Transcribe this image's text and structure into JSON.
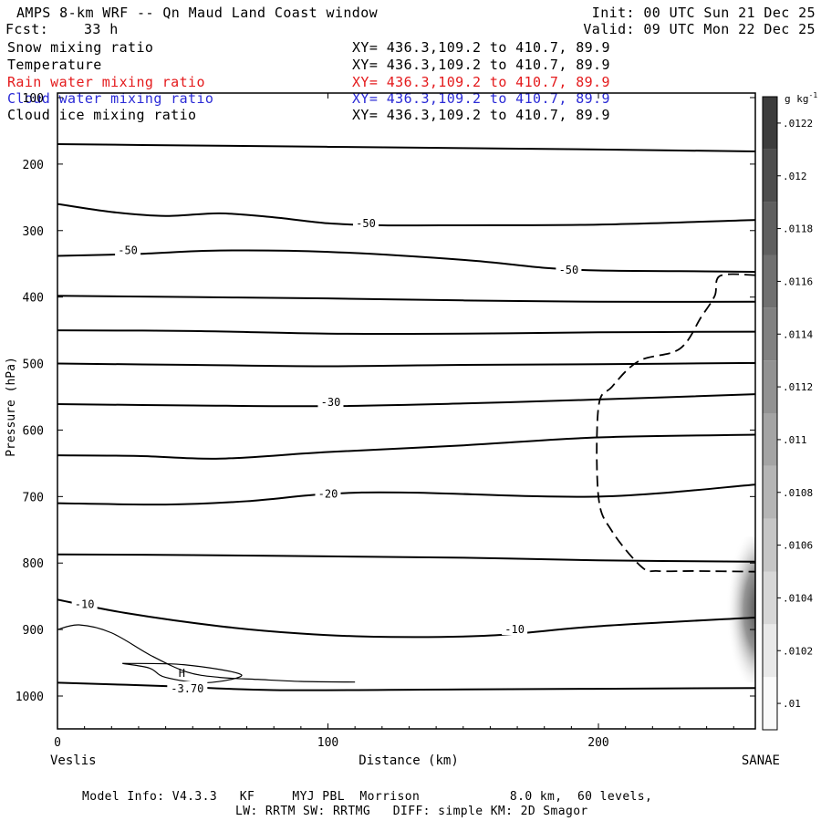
{
  "header": {
    "title": "AMPS 8-km WRF -- Qn Maud Land Coast window",
    "init": "Init: 00 UTC Sun 21 Dec 25",
    "fcst_label": "Fcst:",
    "fcst_value": "33 h",
    "valid": "Valid: 09 UTC Mon 22 Dec 25"
  },
  "fields": [
    {
      "name": "Snow mixing ratio",
      "xy": "XY= 436.3,109.2 to 410.7, 89.9",
      "color": "#000000"
    },
    {
      "name": "Temperature",
      "xy": "XY= 436.3,109.2 to 410.7, 89.9",
      "color": "#000000"
    },
    {
      "name": "Rain water mixing ratio",
      "xy": "XY= 436.3,109.2 to 410.7, 89.9",
      "color": "#e41a1c"
    },
    {
      "name": "Cloud water mixing ratio",
      "xy": "XY= 436.3,109.2 to 410.7, 89.9",
      "color": "#2b2bd6"
    },
    {
      "name": "Cloud ice mixing ratio",
      "xy": "XY= 436.3,109.2 to 410.7, 89.9",
      "color": "#000000"
    }
  ],
  "footer": {
    "line1": "Model Info: V4.3.3   KF     MYJ PBL  Morrison            8.0 km,  60 levels,",
    "line2": "LW: RRTM SW: RRTMG   DIFF: simple KM: 2D Smagor"
  },
  "chart_data": {
    "type": "cross-section contour",
    "title": "AMPS 8-km WRF -- Qn Maud Land Coast window",
    "xlabel": "Distance (km)",
    "ylabel": "Pressure (hPa)",
    "xlim": [
      0,
      258
    ],
    "ylim": [
      1050,
      100
    ],
    "x_ticks": [
      0,
      100,
      200
    ],
    "y_ticks": [
      100,
      200,
      300,
      400,
      500,
      600,
      700,
      800,
      900,
      1000
    ],
    "x_end_labels": {
      "left": "Veslis",
      "right": "SANAE"
    },
    "colorbar": {
      "unit": "g kg",
      "unit_exp": "-1",
      "range": [
        0.0099,
        0.0123
      ],
      "tick_values": [
        0.01,
        0.0102,
        0.0104,
        0.0106,
        0.0108,
        0.011,
        0.0112,
        0.0114,
        0.0116,
        0.0118,
        0.012,
        0.0122
      ],
      "tick_labels": [
        ".01",
        ".0102",
        ".0104",
        ".0106",
        ".0108",
        ".011",
        ".0112",
        ".0114",
        ".0116",
        ".0118",
        ".012",
        ".0122"
      ],
      "shade_levels": 12
    },
    "isotherms": [
      {
        "points": [
          [
            0,
            170
          ],
          [
            50,
            172
          ],
          [
            100,
            174
          ],
          [
            150,
            176
          ],
          [
            200,
            178
          ],
          [
            258,
            181
          ]
        ]
      },
      {
        "points": [
          [
            0,
            260
          ],
          [
            20,
            272
          ],
          [
            40,
            278
          ],
          [
            60,
            274
          ],
          [
            80,
            280
          ],
          [
            100,
            289
          ],
          [
            120,
            292
          ],
          [
            150,
            292
          ],
          [
            200,
            291
          ],
          [
            258,
            284
          ]
        ]
      },
      {
        "points": [
          [
            0,
            338
          ],
          [
            30,
            335
          ],
          [
            60,
            330
          ],
          [
            100,
            332
          ],
          [
            150,
            344
          ],
          [
            180,
            356
          ],
          [
            200,
            360
          ],
          [
            230,
            361
          ],
          [
            258,
            362
          ]
        ]
      },
      {
        "points": [
          [
            0,
            398
          ],
          [
            50,
            400
          ],
          [
            100,
            402
          ],
          [
            150,
            405
          ],
          [
            200,
            407
          ],
          [
            258,
            407
          ]
        ]
      },
      {
        "points": [
          [
            0,
            450
          ],
          [
            50,
            451
          ],
          [
            100,
            455
          ],
          [
            150,
            455
          ],
          [
            200,
            453
          ],
          [
            258,
            452
          ]
        ]
      },
      {
        "points": [
          [
            0,
            500
          ],
          [
            50,
            502
          ],
          [
            100,
            504
          ],
          [
            150,
            502
          ],
          [
            200,
            501
          ],
          [
            258,
            499
          ]
        ]
      },
      {
        "points": [
          [
            0,
            561
          ],
          [
            50,
            563
          ],
          [
            100,
            564
          ],
          [
            150,
            560
          ],
          [
            200,
            554
          ],
          [
            258,
            546
          ]
        ]
      },
      {
        "points": [
          [
            0,
            638
          ],
          [
            30,
            639
          ],
          [
            60,
            643
          ],
          [
            100,
            633
          ],
          [
            150,
            623
          ],
          [
            200,
            611
          ],
          [
            258,
            607
          ]
        ]
      },
      {
        "points": [
          [
            0,
            710
          ],
          [
            40,
            712
          ],
          [
            70,
            707
          ],
          [
            100,
            696
          ],
          [
            130,
            694
          ],
          [
            200,
            700
          ],
          [
            258,
            682
          ]
        ]
      },
      {
        "points": [
          [
            0,
            787
          ],
          [
            50,
            788
          ],
          [
            100,
            790
          ],
          [
            150,
            792
          ],
          [
            200,
            796
          ],
          [
            258,
            798
          ]
        ]
      },
      {
        "points": [
          [
            0,
            855
          ],
          [
            25,
            875
          ],
          [
            60,
            895
          ],
          [
            90,
            906
          ],
          [
            120,
            911
          ],
          [
            160,
            909
          ],
          [
            200,
            895
          ],
          [
            258,
            882
          ]
        ]
      },
      {
        "points": [
          [
            0,
            980
          ],
          [
            40,
            985
          ],
          [
            80,
            991
          ],
          [
            150,
            990
          ],
          [
            258,
            988
          ]
        ]
      }
    ],
    "isotherm_labels": [
      {
        "text": "-50",
        "x": 114,
        "p": 289
      },
      {
        "text": "-50",
        "x": 26,
        "p": 330
      },
      {
        "text": "-50",
        "x": 189,
        "p": 359
      },
      {
        "text": "-30",
        "x": 101,
        "p": 558
      },
      {
        "text": "-20",
        "x": 100,
        "p": 696
      },
      {
        "text": "-10",
        "x": 10,
        "p": 862
      },
      {
        "text": "-10",
        "x": 169,
        "p": 900
      },
      {
        "text": "-3.70",
        "x": 48,
        "p": 989
      }
    ],
    "cloud_ice_contour": {
      "points": [
        [
          258,
          367
        ],
        [
          245,
          368
        ],
        [
          243,
          398
        ],
        [
          238,
          430
        ],
        [
          230,
          478
        ],
        [
          215,
          496
        ],
        [
          205,
          535
        ],
        [
          200,
          566
        ],
        [
          200,
          700
        ],
        [
          205,
          752
        ],
        [
          216,
          806
        ],
        [
          222,
          812
        ],
        [
          236,
          812
        ],
        [
          258,
          813
        ]
      ],
      "style": "dashed"
    },
    "snow_region": {
      "x_range": [
        248,
        258
      ],
      "p_range": [
        760,
        980
      ],
      "peak_value": 0.0109
    },
    "thin_contour": {
      "points": [
        [
          0,
          900
        ],
        [
          8,
          893
        ],
        [
          20,
          905
        ],
        [
          35,
          940
        ],
        [
          48,
          964
        ],
        [
          60,
          972
        ],
        [
          74,
          975
        ],
        [
          90,
          978
        ],
        [
          110,
          979
        ]
      ]
    },
    "h_marker": {
      "text": "H",
      "x": 46,
      "p": 966
    },
    "h_contour": {
      "points": [
        [
          24,
          951
        ],
        [
          47,
          953
        ],
        [
          68,
          968
        ],
        [
          55,
          980
        ],
        [
          40,
          972
        ],
        [
          34,
          958
        ],
        [
          24,
          951
        ]
      ]
    }
  }
}
